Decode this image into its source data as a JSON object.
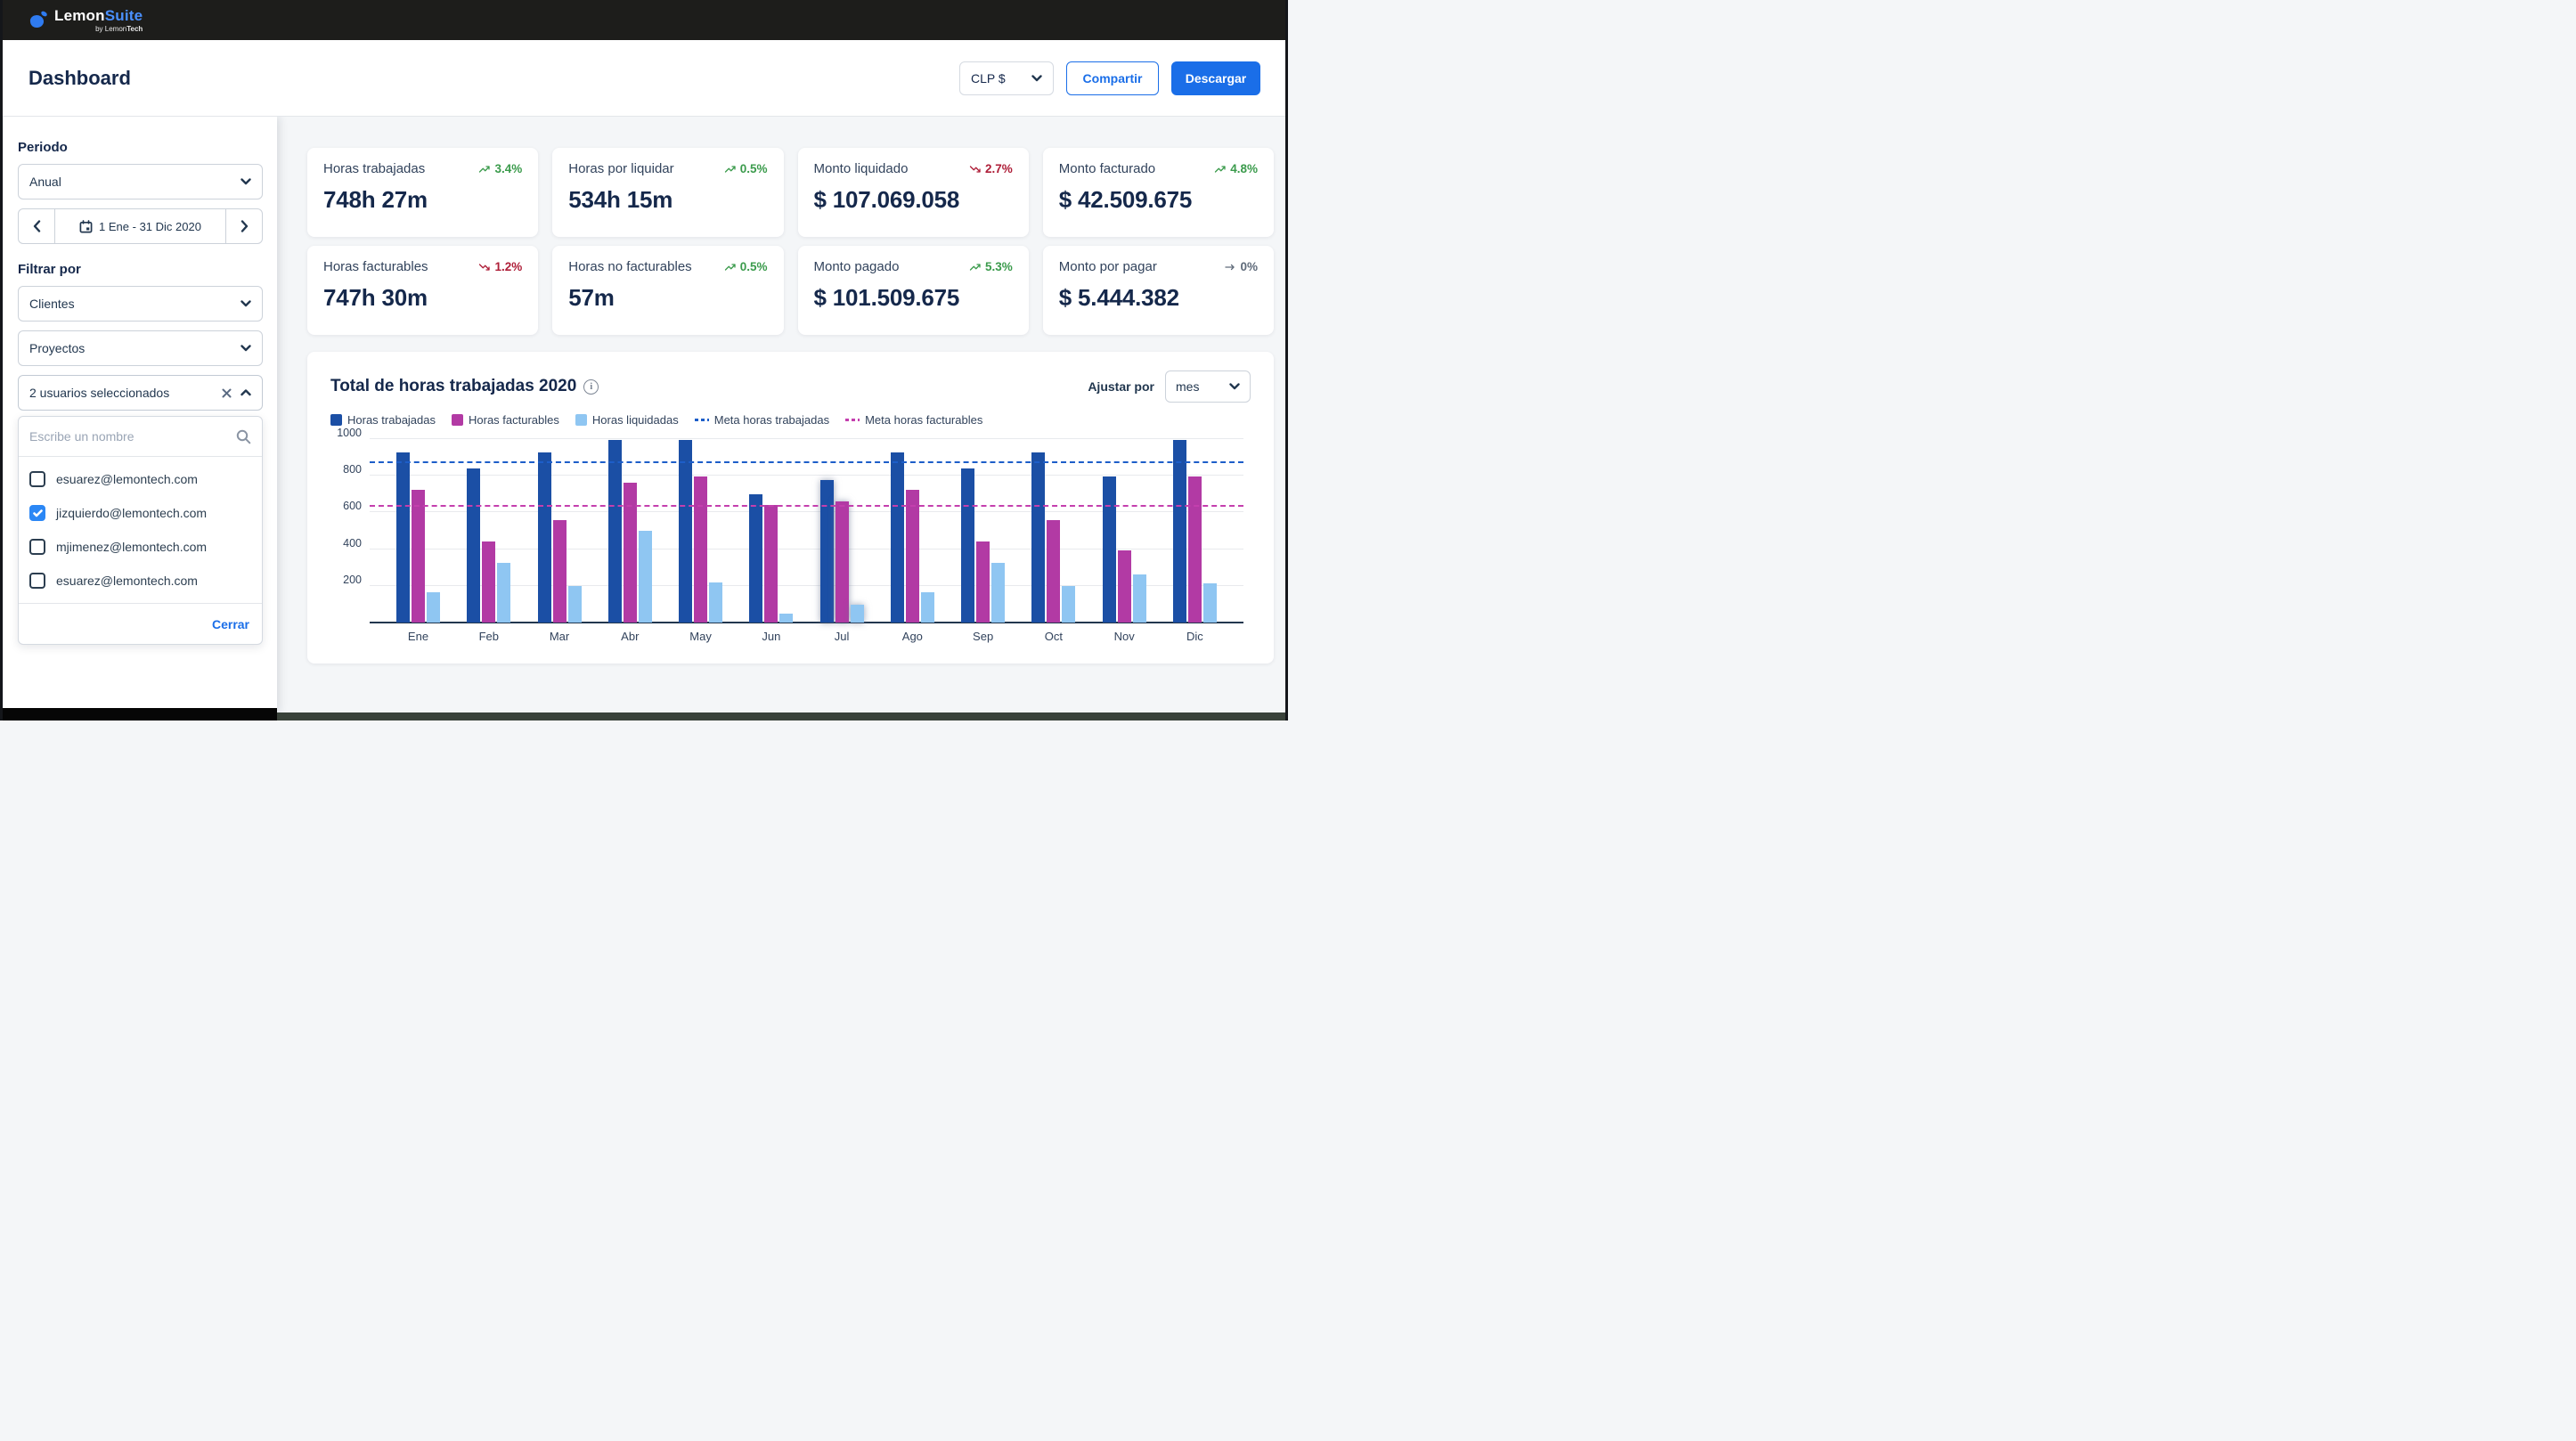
{
  "topbar": {
    "brand_lemon": "Lemon",
    "brand_suite": "Suite",
    "byline_by": "by",
    "byline_lemon": "Lemon",
    "byline_tech": "Tech"
  },
  "header": {
    "title": "Dashboard",
    "currency_value": "CLP $",
    "share_label": "Compartir",
    "download_label": "Descargar"
  },
  "sidebar": {
    "period_heading": "Periodo",
    "period_value": "Anual",
    "date_range": "1 Ene - 31 Dic 2020",
    "filter_heading": "Filtrar por",
    "clients_value": "Clientes",
    "projects_value": "Proyectos",
    "users_value": "2 usuarios seleccionados",
    "user_search_placeholder": "Escribe un nombre",
    "users": [
      {
        "email": "esuarez@lemontech.com",
        "checked": false
      },
      {
        "email": "jizquierdo@lemontech.com",
        "checked": true
      },
      {
        "email": "mjimenez@lemontech.com",
        "checked": false
      },
      {
        "email": "esuarez@lemontech.com",
        "checked": false
      }
    ],
    "close_label": "Cerrar"
  },
  "kpis": [
    {
      "label": "Horas trabajadas",
      "trend": "up",
      "pct": "3.4%",
      "value": "748h 27m"
    },
    {
      "label": "Horas por liquidar",
      "trend": "up",
      "pct": "0.5%",
      "value": "534h 15m"
    },
    {
      "label": "Monto liquidado",
      "trend": "down",
      "pct": "2.7%",
      "value": "$ 107.069.058"
    },
    {
      "label": "Monto facturado",
      "trend": "up",
      "pct": "4.8%",
      "value": "$ 42.509.675"
    },
    {
      "label": "Horas facturables",
      "trend": "down",
      "pct": "1.2%",
      "value": "747h 30m"
    },
    {
      "label": "Horas no facturables",
      "trend": "up",
      "pct": "0.5%",
      "value": "57m"
    },
    {
      "label": "Monto pagado",
      "trend": "up",
      "pct": "5.3%",
      "value": "$ 101.509.675"
    },
    {
      "label": "Monto por pagar",
      "trend": "flat",
      "pct": "0%",
      "value": "$ 5.444.382"
    }
  ],
  "chart": {
    "title": "Total de horas trabajadas 2020",
    "adjust_label": "Ajustar por",
    "adjust_value": "mes"
  },
  "chart_data": {
    "type": "bar",
    "categories": [
      "Ene",
      "Feb",
      "Mar",
      "Abr",
      "May",
      "Jun",
      "Jul",
      "Ago",
      "Sep",
      "Oct",
      "Nov",
      "Dic"
    ],
    "series": [
      {
        "name": "Horas trabajadas",
        "color": "#1b4fa5",
        "values": [
          925,
          840,
          925,
          995,
          995,
          700,
          775,
          925,
          840,
          925,
          795,
          995
        ]
      },
      {
        "name": "Horas facturables",
        "color": "#b23aa4",
        "values": [
          725,
          440,
          560,
          760,
          795,
          640,
          660,
          725,
          440,
          560,
          395,
          795
        ]
      },
      {
        "name": "Horas liquidadas",
        "color": "#8fc6f2",
        "values": [
          165,
          325,
          200,
          500,
          220,
          50,
          95,
          165,
          325,
          200,
          260,
          215
        ]
      }
    ],
    "target_lines": [
      {
        "name": "Meta horas trabajadas",
        "color": "#1d5ec9",
        "value": 870
      },
      {
        "name": "Meta horas facturables",
        "color": "#c43fae",
        "value": 630
      }
    ],
    "highlighted_category": "Jul",
    "ylim": [
      0,
      1000
    ],
    "yticks": [
      200,
      400,
      600,
      800,
      1000
    ],
    "grid": true,
    "legend_position": "top"
  },
  "colors": {
    "accent_blue": "#1a6ee8",
    "green_up": "#3b9b4c",
    "red_down": "#ae1e38",
    "flat_gray": "#5f6b7a",
    "topbar_bg": "#1d1d1b"
  }
}
